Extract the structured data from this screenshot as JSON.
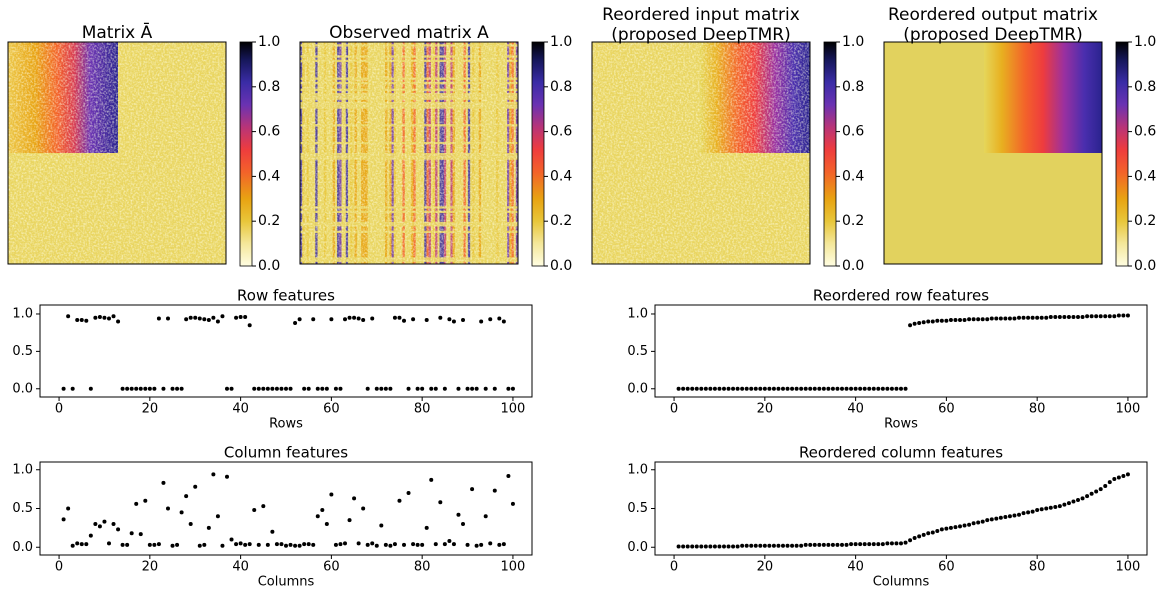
{
  "chart_data": [
    {
      "type": "heatmap",
      "title": "Matrix Ā",
      "zlim": [
        0,
        1
      ],
      "zticks": [
        {
          "value": 0,
          "label": "0.0"
        },
        0.2,
        0.4,
        0.6,
        0.8,
        {
          "value": 1,
          "label": "1.0"
        }
      ]
    },
    {
      "type": "heatmap",
      "title": "Observed matrix A",
      "zlim": [
        0,
        1
      ],
      "zticks": [
        {
          "value": 0,
          "label": "0.0"
        },
        0.2,
        0.4,
        0.6,
        0.8,
        {
          "value": 1,
          "label": "1.0"
        }
      ]
    },
    {
      "type": "heatmap",
      "title": [
        "Reordered input matrix",
        "(proposed DeepTMR)"
      ],
      "zlim": [
        0,
        1
      ],
      "zticks": [
        {
          "value": 0,
          "label": "0.0"
        },
        0.2,
        0.4,
        0.6,
        0.8,
        {
          "value": 1,
          "label": "1.0"
        }
      ]
    },
    {
      "type": "heatmap",
      "title": [
        "Reordered output matrix",
        "(proposed DeepTMR)"
      ],
      "zlim": [
        0,
        1
      ],
      "zticks": [
        {
          "value": 0,
          "label": "0.0"
        },
        0.2,
        0.4,
        0.6,
        0.8,
        {
          "value": 1,
          "label": "1.0"
        }
      ]
    },
    {
      "type": "scatter",
      "title": "Row features",
      "xlabel": "Rows",
      "color": "#000000",
      "xlim": [
        -4.2,
        104.2
      ],
      "xticks": [
        0,
        20,
        40,
        60,
        80,
        100
      ],
      "ylim": [
        -0.11,
        1.12
      ],
      "yticks": [
        {
          "value": 0,
          "label": "0.0"
        },
        0.5,
        {
          "value": 1,
          "label": "1.0"
        }
      ],
      "x": [
        1,
        2,
        3,
        4,
        5,
        6,
        7,
        8,
        9,
        10,
        11,
        12,
        13,
        14,
        15,
        16,
        17,
        18,
        19,
        20,
        21,
        22,
        23,
        24,
        25,
        26,
        27,
        28,
        29,
        30,
        31,
        32,
        33,
        34,
        35,
        36,
        37,
        38,
        39,
        40,
        41,
        42,
        43,
        44,
        45,
        46,
        47,
        48,
        49,
        50,
        51,
        52,
        53,
        54,
        55,
        56,
        57,
        58,
        59,
        60,
        61,
        62,
        63,
        64,
        65,
        66,
        67,
        68,
        69,
        70,
        71,
        72,
        73,
        74,
        75,
        76,
        77,
        78,
        79,
        80,
        81,
        82,
        83,
        84,
        85,
        86,
        87,
        88,
        89,
        90,
        91,
        92,
        93,
        94,
        95,
        96,
        97,
        98,
        99,
        100
      ],
      "values": [
        0,
        0.97,
        0,
        0.92,
        0.92,
        0.91,
        0,
        0.95,
        0.96,
        0.95,
        0.94,
        0.97,
        0.9,
        0,
        0,
        0,
        0,
        0,
        0,
        0,
        0,
        0.94,
        0,
        0.94,
        0,
        0,
        0,
        0.93,
        0.95,
        0.95,
        0.94,
        0.93,
        0.92,
        0.95,
        0.9,
        0.97,
        0,
        0,
        0.95,
        0.96,
        0.96,
        0.85,
        0,
        0,
        0,
        0,
        0,
        0,
        0,
        0,
        0,
        0.88,
        0.93,
        0,
        0,
        0.93,
        0,
        0,
        0,
        0.93,
        0,
        0,
        0.93,
        0.95,
        0.95,
        0.94,
        0.92,
        0,
        0.94,
        0,
        0,
        0,
        0,
        0.95,
        0.95,
        0.91,
        0,
        0.93,
        0,
        0,
        0.92,
        0,
        0,
        0.95,
        0,
        0.93,
        0.9,
        0,
        0.92,
        0,
        0,
        0,
        0.9,
        0,
        0.93,
        0,
        0.94,
        0.9,
        0,
        0
      ]
    },
    {
      "type": "scatter",
      "title": "Reordered row features",
      "xlabel": "Rows",
      "color": "#000000",
      "xlim": [
        -4.2,
        104.2
      ],
      "xticks": [
        0,
        20,
        40,
        60,
        80,
        100
      ],
      "ylim": [
        -0.11,
        1.12
      ],
      "yticks": [
        {
          "value": 0,
          "label": "0.0"
        },
        0.5,
        {
          "value": 1,
          "label": "1.0"
        }
      ],
      "x": [
        1,
        2,
        3,
        4,
        5,
        6,
        7,
        8,
        9,
        10,
        11,
        12,
        13,
        14,
        15,
        16,
        17,
        18,
        19,
        20,
        21,
        22,
        23,
        24,
        25,
        26,
        27,
        28,
        29,
        30,
        31,
        32,
        33,
        34,
        35,
        36,
        37,
        38,
        39,
        40,
        41,
        42,
        43,
        44,
        45,
        46,
        47,
        48,
        49,
        50,
        51,
        52,
        53,
        54,
        55,
        56,
        57,
        58,
        59,
        60,
        61,
        62,
        63,
        64,
        65,
        66,
        67,
        68,
        69,
        70,
        71,
        72,
        73,
        74,
        75,
        76,
        77,
        78,
        79,
        80,
        81,
        82,
        83,
        84,
        85,
        86,
        87,
        88,
        89,
        90,
        91,
        92,
        93,
        94,
        95,
        96,
        97,
        98,
        99,
        100
      ],
      "values": [
        0,
        0,
        0,
        0,
        0,
        0,
        0,
        0,
        0,
        0,
        0,
        0,
        0,
        0,
        0,
        0,
        0,
        0,
        0,
        0,
        0,
        0,
        0,
        0,
        0,
        0,
        0,
        0,
        0,
        0,
        0,
        0,
        0,
        0,
        0,
        0,
        0,
        0,
        0,
        0,
        0,
        0,
        0,
        0,
        0,
        0,
        0,
        0,
        0,
        0,
        0,
        0.85,
        0.87,
        0.88,
        0.89,
        0.9,
        0.9,
        0.91,
        0.91,
        0.91,
        0.92,
        0.92,
        0.92,
        0.92,
        0.93,
        0.93,
        0.93,
        0.93,
        0.93,
        0.94,
        0.94,
        0.94,
        0.94,
        0.94,
        0.94,
        0.95,
        0.95,
        0.95,
        0.95,
        0.95,
        0.95,
        0.95,
        0.96,
        0.96,
        0.96,
        0.96,
        0.96,
        0.96,
        0.96,
        0.96,
        0.97,
        0.97,
        0.97,
        0.97,
        0.97,
        0.97,
        0.97,
        0.98,
        0.98,
        0.98
      ]
    },
    {
      "type": "scatter",
      "title": "Column features",
      "xlabel": "Columns",
      "color": "#000000",
      "xlim": [
        -4.2,
        104.2
      ],
      "xticks": [
        0,
        20,
        40,
        60,
        80,
        100
      ],
      "ylim": [
        -0.1,
        1.1
      ],
      "yticks": [
        {
          "value": 0,
          "label": "0.0"
        },
        0.5,
        {
          "value": 1,
          "label": "1.0"
        }
      ],
      "x": [
        1,
        2,
        3,
        4,
        5,
        6,
        7,
        8,
        9,
        10,
        11,
        12,
        13,
        14,
        15,
        16,
        17,
        18,
        19,
        20,
        21,
        22,
        23,
        24,
        25,
        26,
        27,
        28,
        29,
        30,
        31,
        32,
        33,
        34,
        35,
        36,
        37,
        38,
        39,
        40,
        41,
        42,
        43,
        44,
        45,
        46,
        47,
        48,
        49,
        50,
        51,
        52,
        53,
        54,
        55,
        56,
        57,
        58,
        59,
        60,
        61,
        62,
        63,
        64,
        65,
        66,
        67,
        68,
        69,
        70,
        71,
        72,
        73,
        74,
        75,
        76,
        77,
        78,
        79,
        80,
        81,
        82,
        83,
        84,
        85,
        86,
        87,
        88,
        89,
        90,
        91,
        92,
        93,
        94,
        95,
        96,
        97,
        98,
        99,
        100
      ],
      "values": [
        0.36,
        0.5,
        0.02,
        0.05,
        0.04,
        0.04,
        0.15,
        0.3,
        0.27,
        0.33,
        0.05,
        0.3,
        0.23,
        0.03,
        0.03,
        0.18,
        0.56,
        0.17,
        0.6,
        0.03,
        0.03,
        0.04,
        0.83,
        0.5,
        0.02,
        0.03,
        0.45,
        0.66,
        0.3,
        0.78,
        0.02,
        0.03,
        0.25,
        0.94,
        0.4,
        0.02,
        0.91,
        0.1,
        0.04,
        0.05,
        0.03,
        0.04,
        0.48,
        0.03,
        0.53,
        0.03,
        0.2,
        0.04,
        0.04,
        0.02,
        0.03,
        0.02,
        0.02,
        0.04,
        0.04,
        0.03,
        0.4,
        0.48,
        0.3,
        0.68,
        0.03,
        0.04,
        0.05,
        0.35,
        0.63,
        0.05,
        0.5,
        0.03,
        0.05,
        0.02,
        0.28,
        0.03,
        0.02,
        0.04,
        0.6,
        0.03,
        0.7,
        0.04,
        0.03,
        0.03,
        0.25,
        0.87,
        0.04,
        0.58,
        0.04,
        0.08,
        0.04,
        0.42,
        0.3,
        0.03,
        0.75,
        0.02,
        0.03,
        0.4,
        0.05,
        0.73,
        0.03,
        0.04,
        0.92,
        0.56
      ]
    },
    {
      "type": "scatter",
      "title": "Reordered column features",
      "xlabel": "Columns",
      "color": "#000000",
      "xlim": [
        -4.2,
        104.2
      ],
      "xticks": [
        0,
        20,
        40,
        60,
        80,
        100
      ],
      "ylim": [
        -0.1,
        1.1
      ],
      "yticks": [
        {
          "value": 0,
          "label": "0.0"
        },
        0.5,
        {
          "value": 1,
          "label": "1.0"
        }
      ],
      "x": [
        1,
        2,
        3,
        4,
        5,
        6,
        7,
        8,
        9,
        10,
        11,
        12,
        13,
        14,
        15,
        16,
        17,
        18,
        19,
        20,
        21,
        22,
        23,
        24,
        25,
        26,
        27,
        28,
        29,
        30,
        31,
        32,
        33,
        34,
        35,
        36,
        37,
        38,
        39,
        40,
        41,
        42,
        43,
        44,
        45,
        46,
        47,
        48,
        49,
        50,
        51,
        52,
        53,
        54,
        55,
        56,
        57,
        58,
        59,
        60,
        61,
        62,
        63,
        64,
        65,
        66,
        67,
        68,
        69,
        70,
        71,
        72,
        73,
        74,
        75,
        76,
        77,
        78,
        79,
        80,
        81,
        82,
        83,
        84,
        85,
        86,
        87,
        88,
        89,
        90,
        91,
        92,
        93,
        94,
        95,
        96,
        97,
        98,
        99,
        100
      ],
      "values": [
        0.01,
        0.01,
        0.01,
        0.01,
        0.01,
        0.01,
        0.01,
        0.01,
        0.01,
        0.01,
        0.01,
        0.01,
        0.01,
        0.01,
        0.02,
        0.02,
        0.02,
        0.02,
        0.02,
        0.02,
        0.02,
        0.02,
        0.02,
        0.02,
        0.02,
        0.02,
        0.02,
        0.02,
        0.03,
        0.03,
        0.03,
        0.03,
        0.03,
        0.03,
        0.03,
        0.03,
        0.03,
        0.03,
        0.04,
        0.04,
        0.04,
        0.04,
        0.04,
        0.04,
        0.04,
        0.04,
        0.05,
        0.05,
        0.05,
        0.05,
        0.06,
        0.09,
        0.12,
        0.14,
        0.16,
        0.18,
        0.19,
        0.21,
        0.23,
        0.24,
        0.25,
        0.26,
        0.27,
        0.28,
        0.29,
        0.31,
        0.32,
        0.33,
        0.35,
        0.36,
        0.37,
        0.38,
        0.39,
        0.4,
        0.41,
        0.42,
        0.44,
        0.45,
        0.46,
        0.48,
        0.49,
        0.5,
        0.51,
        0.52,
        0.53,
        0.55,
        0.57,
        0.59,
        0.61,
        0.63,
        0.66,
        0.69,
        0.72,
        0.75,
        0.79,
        0.84,
        0.88,
        0.9,
        0.92,
        0.94
      ]
    }
  ]
}
